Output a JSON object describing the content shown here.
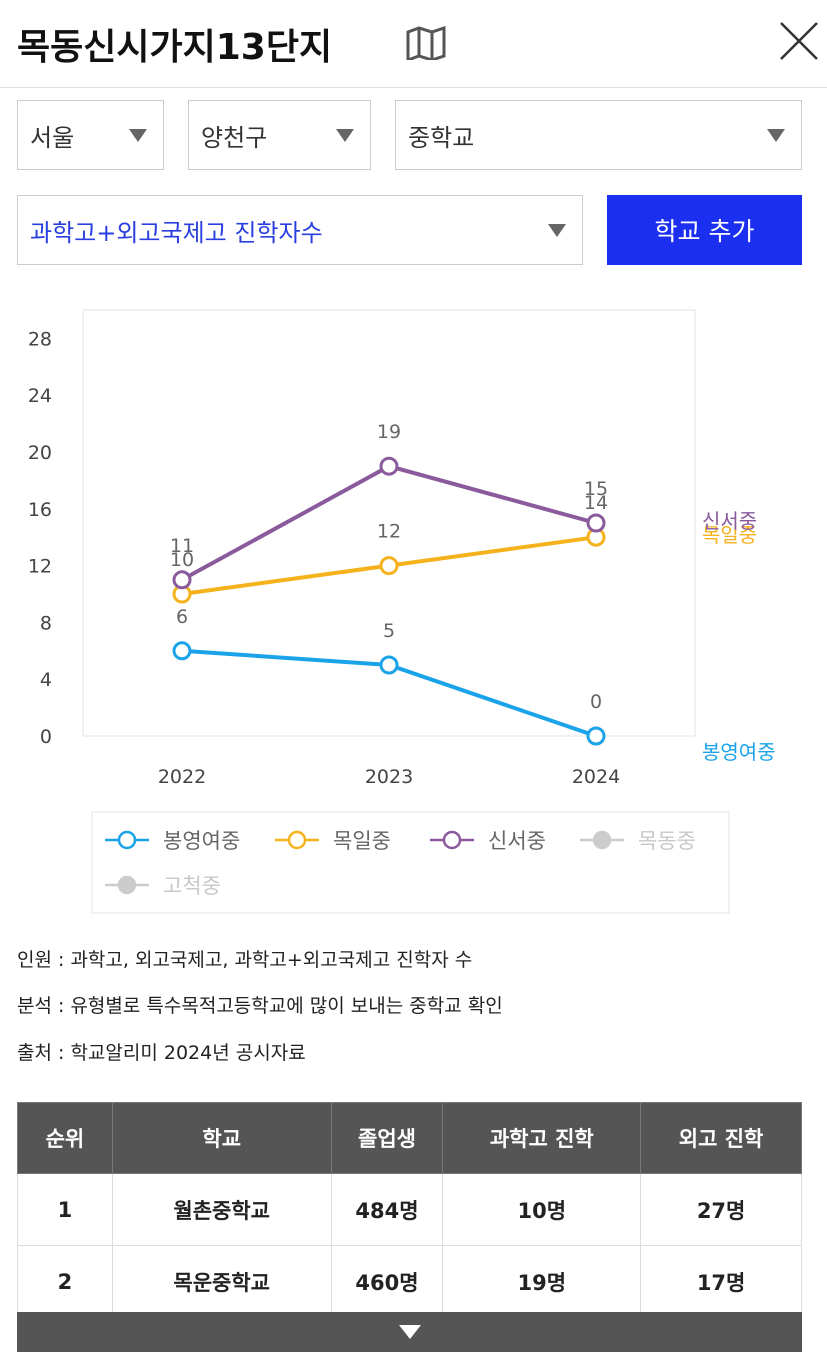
{
  "header": {
    "title": "목동신시가지13단지"
  },
  "filters": {
    "region": "서울",
    "district": "양천구",
    "level": "중학교",
    "metric": "과학고+외고국제고 진학자수",
    "button": "학교 추가"
  },
  "chart_data": {
    "type": "line",
    "categories": [
      "2022",
      "2023",
      "2024"
    ],
    "ylim": [
      0,
      30
    ],
    "yticks": [
      0,
      4,
      8,
      12,
      16,
      20,
      24,
      28
    ],
    "grid": false,
    "series": [
      {
        "name": "봉영여중",
        "color": "#1aa3e8",
        "values": [
          6,
          5,
          0
        ]
      },
      {
        "name": "목일중",
        "color": "#f5b21c",
        "values": [
          10,
          12,
          14
        ]
      },
      {
        "name": "신서중",
        "color": "#8a5a9c",
        "values": [
          11,
          19,
          15
        ]
      },
      {
        "name": "목동중",
        "color": "#cccccc",
        "values": [
          null,
          null,
          null
        ]
      },
      {
        "name": "고척중",
        "color": "#cccccc",
        "values": [
          null,
          null,
          null
        ]
      }
    ]
  },
  "notes": [
    "인원 : 과학고, 외고국제고, 과학고+외고국제고 진학자 수",
    "분석 : 유형별로 특수목적고등학교에 많이 보내는 중학교 확인",
    "출처 : 학교알리미 2024년 공시자료"
  ],
  "table": {
    "columns": [
      "순위",
      "학교",
      "졸업생",
      "과학고 진학",
      "외고 진학"
    ],
    "rows": [
      [
        "1",
        "월촌중학교",
        "484명",
        "10명",
        "27명"
      ],
      [
        "2",
        "목운중학교",
        "460명",
        "19명",
        "17명"
      ]
    ]
  }
}
